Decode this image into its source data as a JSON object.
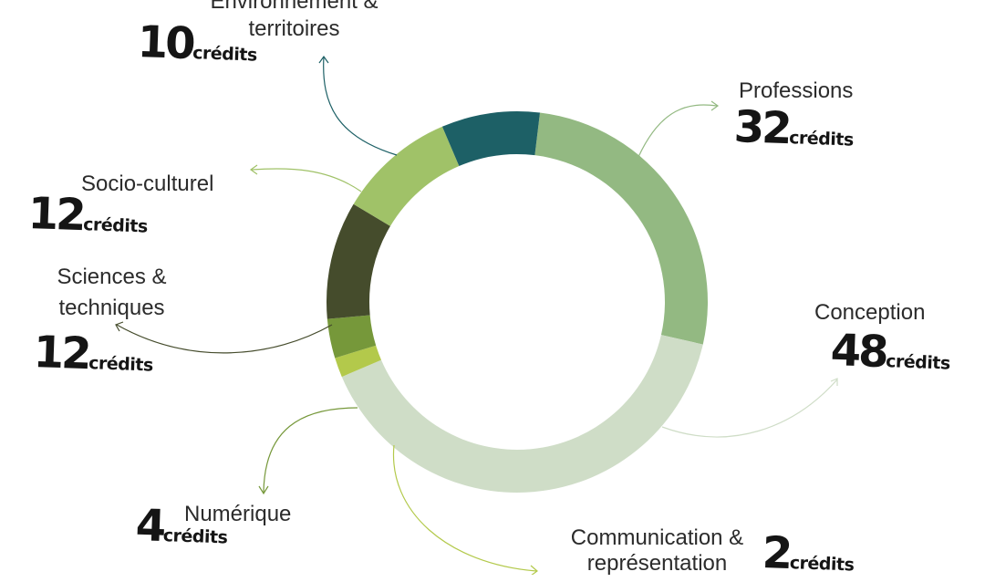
{
  "chart_data": {
    "type": "donut",
    "unit": "crédits",
    "segments": [
      {
        "label": "Professions",
        "value": 32,
        "color": "#93b982"
      },
      {
        "label": "Conception",
        "value": 48,
        "color": "#cfddc7"
      },
      {
        "label": "Communication & représentation",
        "value": 2,
        "color": "#b3c94b"
      },
      {
        "label": "Numérique",
        "value": 4,
        "color": "#76983a"
      },
      {
        "label": "Sciences & techniques",
        "value": 12,
        "color": "#454c2c"
      },
      {
        "label": "Socio-culturel",
        "value": 12,
        "color": "#a0c268"
      },
      {
        "label": "Environnement & territoires",
        "value": 10,
        "color": "#1d6066"
      }
    ]
  },
  "labels": {
    "professions": {
      "name": "Professions",
      "number": "32",
      "unit": "crédits"
    },
    "conception": {
      "name": "Conception",
      "number": "48",
      "unit": "crédits"
    },
    "communication": {
      "name": "Communication &",
      "name_line2": "représentation",
      "number": "2",
      "unit": "crédits"
    },
    "numerique": {
      "name": "Numérique",
      "number": "4",
      "unit": "crédits"
    },
    "sciences": {
      "name": "Sciences &",
      "name_line2": "techniques",
      "number": "12",
      "unit": "crédits"
    },
    "socio": {
      "name": "Socio-culturel",
      "number": "12",
      "unit": "crédits"
    },
    "environnement": {
      "name": "Environnement &",
      "name_line2": "territoires",
      "number": "10",
      "unit": "crédits"
    }
  }
}
